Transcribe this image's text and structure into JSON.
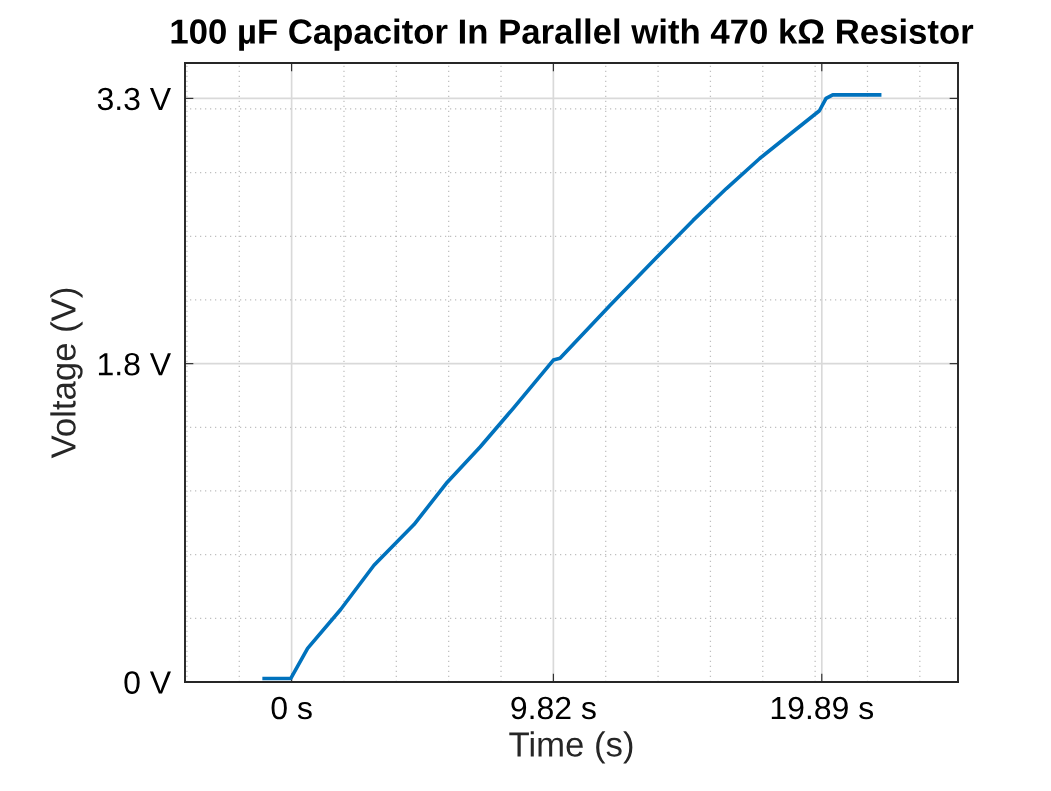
{
  "chart_data": {
    "type": "line",
    "title": "100 µF Capacitor In Parallel with 470 kΩ Resistor",
    "xlabel": "Time (s)",
    "ylabel": "Voltage (V)",
    "x": [
      -1.03,
      -0.03,
      0.6,
      1.84,
      3.09,
      4.59,
      5.84,
      7.08,
      8.33,
      9.82,
      10.07,
      11.95,
      13.69,
      15.06,
      16.31,
      17.56,
      18.8,
      19.8,
      20.05,
      20.3,
      22.06
    ],
    "series": [
      {
        "color": "#0072bd",
        "values": [
          0.02,
          0.02,
          0.19,
          0.41,
          0.66,
          0.89,
          1.13,
          1.33,
          1.55,
          1.82,
          1.83,
          2.13,
          2.4,
          2.61,
          2.79,
          2.96,
          3.11,
          3.23,
          3.3,
          3.32,
          3.32
        ]
      }
    ],
    "xlim": [
      -4,
      25
    ],
    "ylim": [
      0,
      3.5
    ],
    "xticks": [
      {
        "value": 0,
        "label": "0 s"
      },
      {
        "value": 9.82,
        "label": "9.82 s"
      },
      {
        "value": 19.89,
        "label": "19.89 s"
      }
    ],
    "yticks": [
      {
        "value": 0,
        "label": "0 V"
      },
      {
        "value": 1.8,
        "label": "1.8 V"
      },
      {
        "value": 3.3,
        "label": "3.3 V"
      }
    ],
    "grid": true,
    "marker": "none",
    "line_style": "solid",
    "legend": false
  }
}
